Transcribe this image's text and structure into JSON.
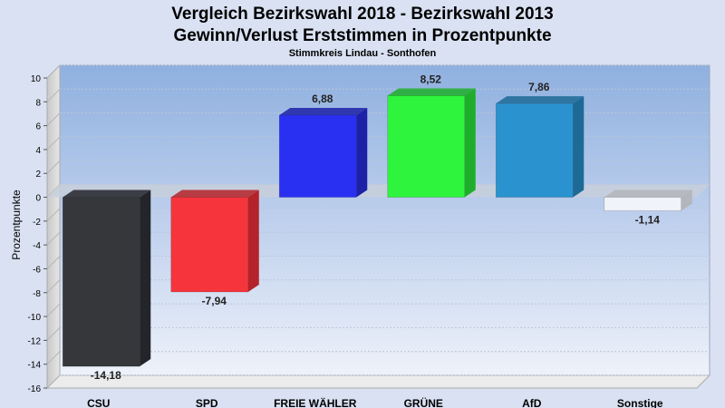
{
  "chart_data": {
    "type": "bar",
    "title": "Vergleich Bezirkswahl 2018 - Bezirkswahl 2013",
    "subtitle_line": "Gewinn/Verlust Erststimmen in Prozentpunkte",
    "caption": "Stimmkreis Lindau - Sonthofen",
    "ylabel": "Prozentpunkte",
    "xlabel": "",
    "ylim": [
      -16,
      10
    ],
    "yticks": [
      "10",
      "8",
      "6",
      "4",
      "2",
      "0",
      "-2",
      "-4",
      "-6",
      "-8",
      "-10",
      "-12",
      "-14",
      "-16"
    ],
    "grid": true,
    "categories": [
      "CSU",
      "SPD",
      "FREIE WÄHLER",
      "GRÜNE",
      "AfD",
      "Sonstige"
    ],
    "values": [
      -14.18,
      -7.94,
      6.88,
      8.52,
      7.86,
      -1.14
    ],
    "value_labels": [
      "-14,18",
      "-7,94",
      "6,88",
      "8,52",
      "7,86",
      "-1,14"
    ],
    "colors": [
      "#35373b",
      "#f5343c",
      "#2a30f2",
      "#2ef43e",
      "#2a93cf",
      "#f0f3fa"
    ],
    "side_colors": [
      "#23252a",
      "#b52229",
      "#1c21a8",
      "#1fae2b",
      "#1d6a97",
      "#b3b6bb"
    ]
  }
}
